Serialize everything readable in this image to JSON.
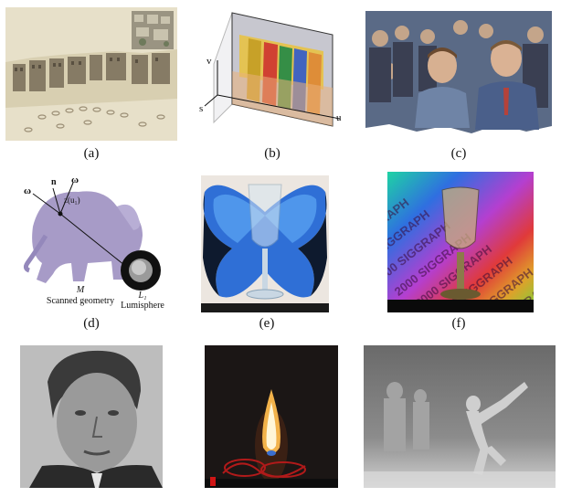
{
  "figure": {
    "panels": [
      {
        "id": "a",
        "caption": "(a)",
        "subject": "street panorama with inset"
      },
      {
        "id": "b",
        "caption": "(b)",
        "subject": "light field slab",
        "axis_labels": {
          "v": "v",
          "s": "s",
          "u": "u"
        }
      },
      {
        "id": "c",
        "caption": "(c)",
        "subject": "two men in crowd"
      },
      {
        "id": "d",
        "caption": "(d)",
        "subject": "elephant with lumisphere",
        "labels": {
          "n": "n",
          "omega_left": "ω",
          "omega_right": "ω",
          "point": "z(u₁)",
          "geometry_symbol": "M",
          "geometry_text": "Scanned geometry",
          "sphere_symbol": "L₁",
          "sphere_text": "Lumisphere"
        }
      },
      {
        "id": "e",
        "caption": "(e)",
        "subject": "glass in front of butterfly"
      },
      {
        "id": "f",
        "caption": "(f)",
        "subject": "goblet on rainbow text",
        "background_text": "2000 SIGGRAPH"
      },
      {
        "id": "g",
        "caption": "",
        "subject": "grayscale face portrait"
      },
      {
        "id": "h",
        "caption": "",
        "subject": "candle flame"
      },
      {
        "id": "i",
        "caption": "",
        "subject": "depth map of dancers"
      }
    ]
  }
}
